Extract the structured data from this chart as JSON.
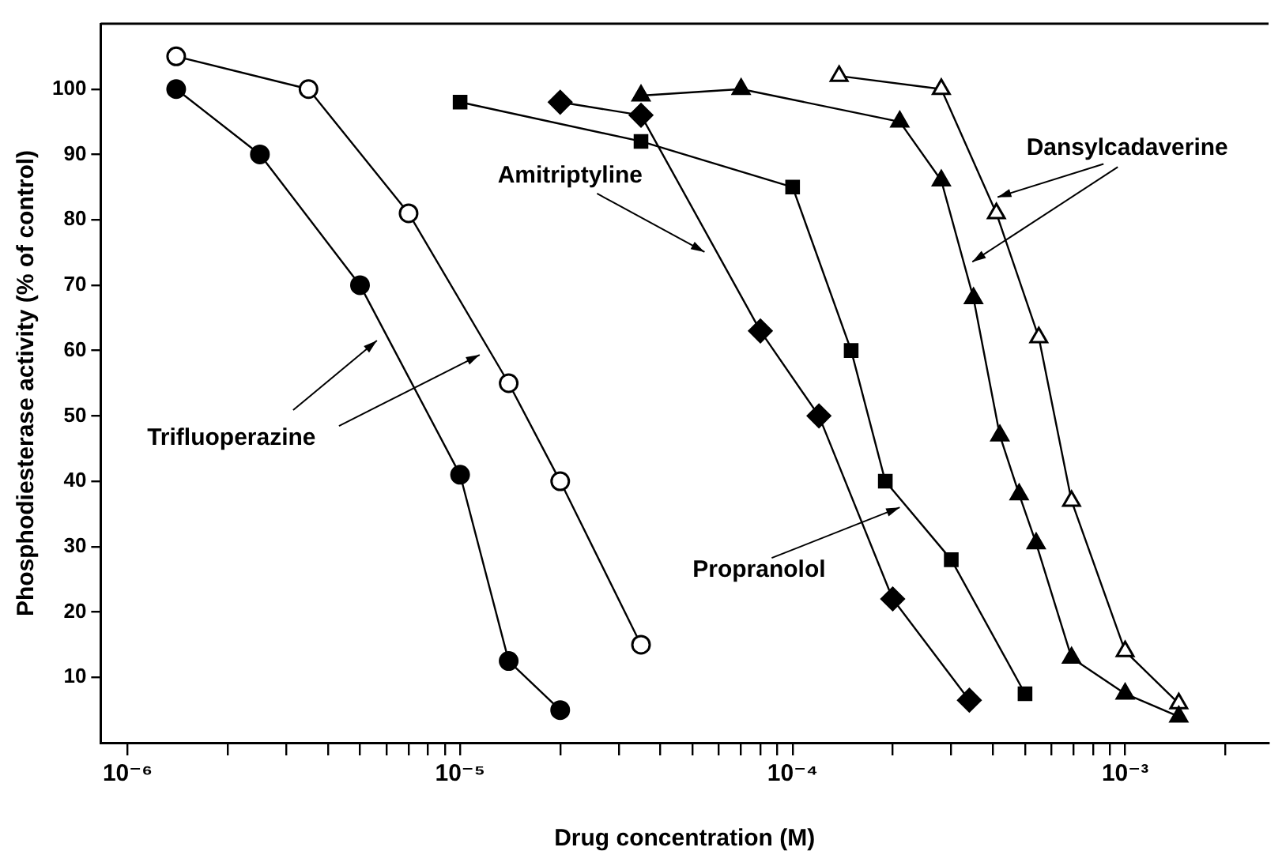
{
  "chart_data": {
    "type": "line",
    "xlabel": "Drug concentration (M)",
    "ylabel": "Phosphodiesterase activity (% of control)",
    "log": "x",
    "grid": false,
    "legend": false,
    "line_style": "solid",
    "xlim": [
      8.3e-07,
      0.0027
    ],
    "ylim": [
      0,
      110
    ],
    "xticks": [
      {
        "value": 1e-06,
        "label": "10⁻⁶"
      },
      {
        "value": 2e-06,
        "label": null
      },
      {
        "value": 3e-06,
        "label": null
      },
      {
        "value": 4e-06,
        "label": null
      },
      {
        "value": 5e-06,
        "label": null
      },
      {
        "value": 6e-06,
        "label": null
      },
      {
        "value": 7e-06,
        "label": null
      },
      {
        "value": 8e-06,
        "label": null
      },
      {
        "value": 9e-06,
        "label": null
      },
      {
        "value": 1e-05,
        "label": "10⁻⁵"
      },
      {
        "value": 2e-05,
        "label": null
      },
      {
        "value": 3e-05,
        "label": null
      },
      {
        "value": 4e-05,
        "label": null
      },
      {
        "value": 5e-05,
        "label": null
      },
      {
        "value": 6e-05,
        "label": null
      },
      {
        "value": 7e-05,
        "label": null
      },
      {
        "value": 8e-05,
        "label": null
      },
      {
        "value": 9e-05,
        "label": null
      },
      {
        "value": 0.0001,
        "label": "10⁻⁴"
      },
      {
        "value": 0.0002,
        "label": null
      },
      {
        "value": 0.0003,
        "label": null
      },
      {
        "value": 0.0004,
        "label": null
      },
      {
        "value": 0.0005,
        "label": null
      },
      {
        "value": 0.0006,
        "label": null
      },
      {
        "value": 0.0007,
        "label": null
      },
      {
        "value": 0.0008,
        "label": null
      },
      {
        "value": 0.0009,
        "label": null
      },
      {
        "value": 0.001,
        "label": "10⁻³"
      },
      {
        "value": 0.002,
        "label": null
      }
    ],
    "yticks": [
      10,
      20,
      30,
      40,
      50,
      60,
      70,
      80,
      90,
      100
    ],
    "series": [
      {
        "color": "#000000",
        "marker": "circle",
        "x": [
          1.4e-06,
          2.5e-06,
          5e-06,
          1e-05,
          1.4e-05,
          2e-05
        ],
        "values": [
          100,
          90,
          70,
          41,
          12.5,
          5
        ]
      },
      {
        "color": "#ffffff",
        "marker": "circle",
        "x": [
          1.4e-06,
          3.5e-06,
          7e-06,
          1.4e-05,
          2e-05,
          3.5e-05
        ],
        "values": [
          105,
          100,
          81,
          55,
          40,
          15
        ]
      },
      {
        "color": "#000000",
        "marker": "diamond",
        "x": [
          2e-05,
          3.5e-05,
          8e-05,
          0.00012,
          0.0002,
          0.00034
        ],
        "values": [
          98,
          96,
          63,
          50,
          22,
          6.5
        ]
      },
      {
        "color": "#000000",
        "marker": "square",
        "x": [
          1e-05,
          3.5e-05,
          0.0001,
          0.00015,
          0.00019,
          0.0003,
          0.0005
        ],
        "values": [
          98,
          92,
          85,
          60,
          40,
          28,
          7.5
        ]
      },
      {
        "color": "#000000",
        "marker": "triangle",
        "x": [
          3.5e-05,
          7e-05,
          0.00021,
          0.00028,
          0.00035,
          0.00042,
          0.00048,
          0.00054,
          0.00069,
          0.001,
          0.00145
        ],
        "values": [
          99,
          100,
          95,
          86,
          68,
          47,
          38,
          30.5,
          13,
          7.5,
          4
        ]
      },
      {
        "color": "#ffffff",
        "marker": "triangle",
        "x": [
          0.000138,
          0.00028,
          0.00041,
          0.00055,
          0.00069,
          0.001,
          0.00145
        ],
        "values": [
          102,
          100,
          81,
          62,
          37,
          14,
          6
        ]
      }
    ],
    "annotations": [
      "Trifluoperazine",
      "Amitriptyline",
      {
        "text": "Propranolol",
        "x": 0.00021,
        "y": 36
      },
      "Dansylcadaverine"
    ]
  }
}
